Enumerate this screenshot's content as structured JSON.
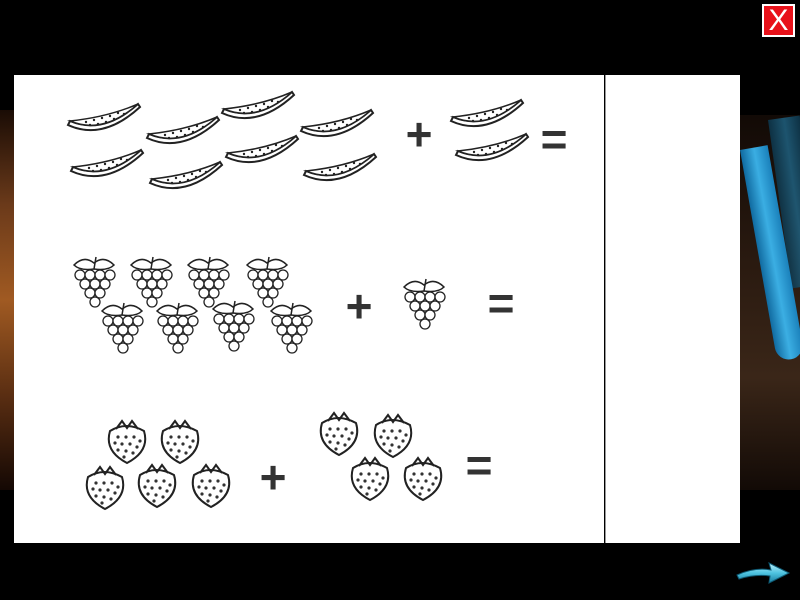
{
  "close_button": {
    "label": "X",
    "color": "#e8111a"
  },
  "worksheet": {
    "rows": [
      {
        "left_item": "watermelon-slice",
        "left_count": 8,
        "operator": "+",
        "right_item": "watermelon-slice",
        "right_count": 2,
        "equals": "="
      },
      {
        "left_item": "grape-bunch",
        "left_count": 8,
        "operator": "+",
        "right_item": "grape-bunch",
        "right_count": 1,
        "equals": "="
      },
      {
        "left_item": "strawberry",
        "left_count": 5,
        "operator": "+",
        "right_item": "strawberry",
        "right_count": 4,
        "equals": "="
      }
    ]
  },
  "navigation": {
    "next_icon": "arrow-right-icon",
    "arrow_color": "#4ec3e0"
  }
}
